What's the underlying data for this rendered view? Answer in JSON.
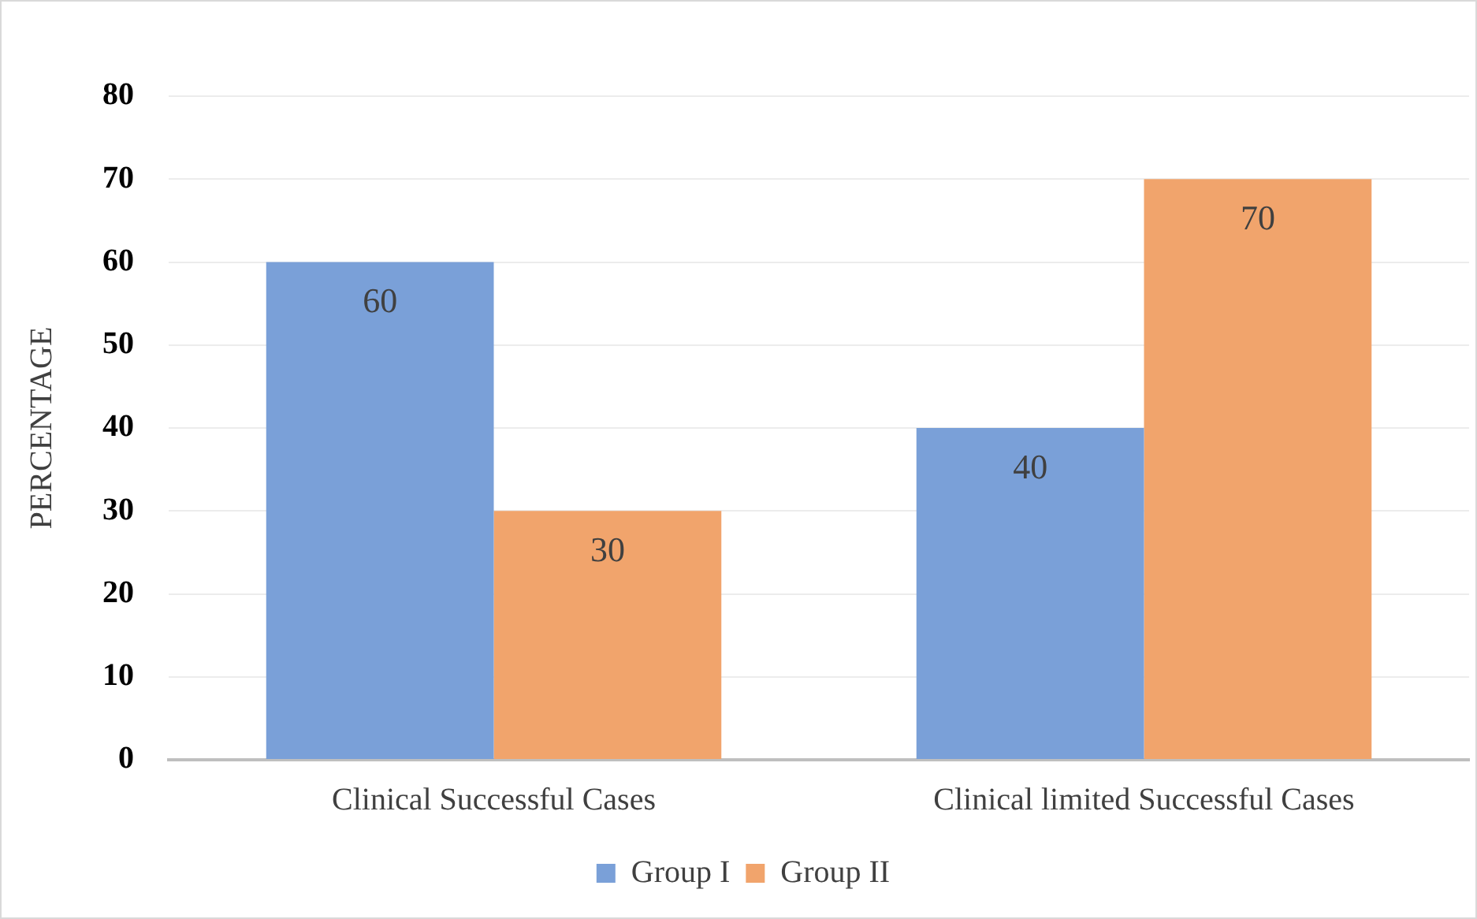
{
  "chart_data": {
    "type": "bar",
    "ylabel": "PERCENTAGE",
    "categories": [
      "Clinical Successful Cases",
      "Clinical limited Successful Cases"
    ],
    "series": [
      {
        "name": "Group I",
        "color": "#7aa0d8",
        "values": [
          60,
          40
        ]
      },
      {
        "name": "Group II",
        "color": "#f1a46c",
        "values": [
          30,
          70
        ]
      }
    ],
    "ylim": [
      0,
      80
    ],
    "yticks": [
      0,
      10,
      20,
      30,
      40,
      50,
      60,
      70,
      80
    ],
    "grid": "y",
    "legend": "bottom",
    "data_labels": true
  }
}
